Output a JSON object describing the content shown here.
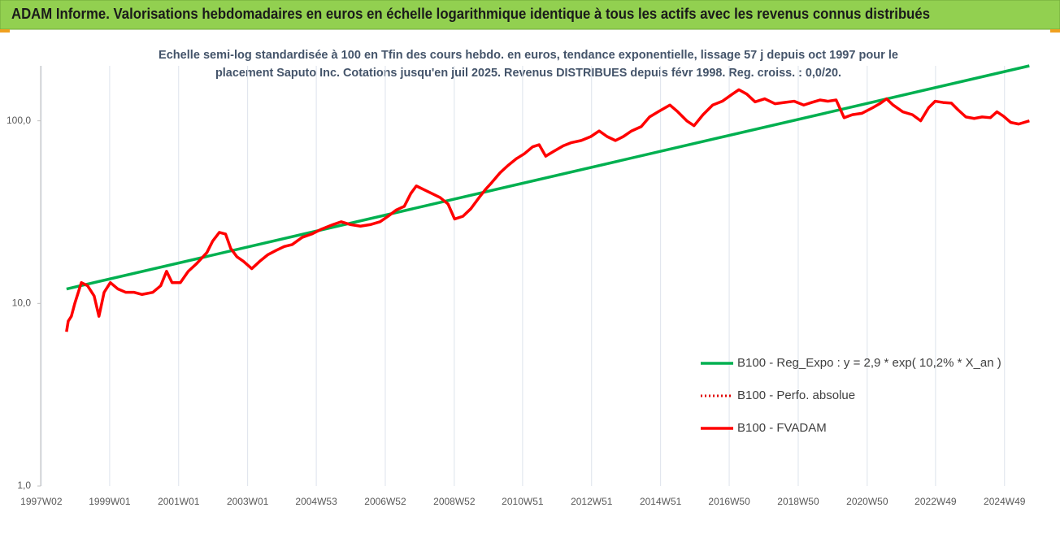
{
  "chart_data": {
    "type": "line",
    "title": "ADAM Informe. Valorisations hebdomadaires en euros en échelle logarithmique identique à tous les actifs avec les revenus connus distribués",
    "subtitle": [
      "Echelle semi-log standardisée à 100 en Tfin des cours hebdo. en euros, tendance exponentielle, lissage 57 j depuis oct 1997 pour le",
      "placement Saputo Inc. Cotations jusqu'en juil 2025.  Revenus DISTRIBUES depuis févr 1998. Reg. croiss. : 0,0/20."
    ],
    "log_scale": true,
    "grid": "x",
    "legend": "right",
    "xlim": [
      1997,
      2025.7
    ],
    "ylim": [
      1,
      200
    ],
    "xticks": [
      {
        "value": 1997.02,
        "label": "1997W02"
      },
      {
        "value": 1999.0,
        "label": "1999W01"
      },
      {
        "value": 2001.0,
        "label": "2001W01"
      },
      {
        "value": 2003.0,
        "label": "2003W01"
      },
      {
        "value": 2004.99,
        "label": "2004W53"
      },
      {
        "value": 2006.99,
        "label": "2006W52"
      },
      {
        "value": 2008.99,
        "label": "2008W52"
      },
      {
        "value": 2010.97,
        "label": "2010W51"
      },
      {
        "value": 2012.97,
        "label": "2012W51"
      },
      {
        "value": 2014.97,
        "label": "2014W51"
      },
      {
        "value": 2016.96,
        "label": "2016W50"
      },
      {
        "value": 2018.96,
        "label": "2018W50"
      },
      {
        "value": 2020.96,
        "label": "2020W50"
      },
      {
        "value": 2022.94,
        "label": "2022W49"
      },
      {
        "value": 2024.94,
        "label": "2024W49"
      }
    ],
    "yticks": [
      {
        "value": 1,
        "label": "1,0"
      },
      {
        "value": 10,
        "label": "10,0"
      },
      {
        "value": 100,
        "label": "100,0"
      }
    ],
    "series": [
      {
        "name": "B100 - Reg_Expo : y = 2,9 * exp( 10,2% *  X_an )",
        "color": "#00b050",
        "style": "solid",
        "x": [
          1997.75,
          2025.66
        ],
        "values": [
          12,
          200
        ]
      },
      {
        "name": "B100 - Perfo. absolue",
        "color": "#e00000",
        "style": "dotted",
        "x": [
          1997.75,
          1997.8,
          1997.89,
          1997.99,
          1998.18,
          1998.36,
          1998.55,
          1998.69,
          1998.84,
          1999.02,
          1999.24,
          1999.47,
          1999.71,
          1999.94,
          2000.25,
          2000.48,
          2000.65,
          2000.81,
          2001.05,
          2001.28,
          2001.52,
          2001.82,
          2001.99,
          2002.18,
          2002.36,
          2002.51,
          2002.69,
          2002.88,
          2003.12,
          2003.35,
          2003.59,
          2003.82,
          2004.06,
          2004.29,
          2004.58,
          2004.86,
          2005.14,
          2005.47,
          2005.71,
          2005.99,
          2006.27,
          2006.55,
          2006.84,
          2007.07,
          2007.31,
          2007.54,
          2007.73,
          2007.89,
          2008.11,
          2008.34,
          2008.58,
          2008.81,
          2009.0,
          2009.24,
          2009.47,
          2009.71,
          2009.89,
          2010.08,
          2010.32,
          2010.55,
          2010.79,
          2011.02,
          2011.26,
          2011.45,
          2011.64,
          2011.87,
          2012.15,
          2012.39,
          2012.67,
          2012.95,
          2013.19,
          2013.42,
          2013.66,
          2013.89,
          2014.13,
          2014.41,
          2014.65,
          2014.93,
          2015.24,
          2015.47,
          2015.73,
          2015.94,
          2016.2,
          2016.48,
          2016.76,
          2017.05,
          2017.24,
          2017.47,
          2017.71,
          2017.99,
          2018.29,
          2018.55,
          2018.84,
          2019.12,
          2019.35,
          2019.59,
          2019.82,
          2020.06,
          2020.29,
          2020.53,
          2020.81,
          2021.12,
          2021.35,
          2021.52,
          2021.71,
          2021.99,
          2022.27,
          2022.51,
          2022.74,
          2022.93,
          2023.16,
          2023.4,
          2023.59,
          2023.82,
          2024.06,
          2024.29,
          2024.53,
          2024.72,
          2024.91,
          2025.12,
          2025.35,
          2025.66
        ],
        "values": [
          7,
          8,
          8.5,
          10,
          13,
          12.5,
          11,
          8.5,
          11.5,
          13,
          12,
          11.5,
          11.5,
          11.2,
          11.5,
          12.5,
          15,
          13,
          13,
          15,
          16.5,
          19,
          22,
          24.5,
          24,
          20,
          18,
          17,
          15.5,
          17,
          18.5,
          19.5,
          20.5,
          21,
          23,
          24,
          25.5,
          27,
          28,
          27,
          26.5,
          27,
          28,
          30,
          32.5,
          34,
          40,
          44,
          42,
          40,
          38,
          35,
          29,
          30,
          33,
          38,
          42,
          46,
          52,
          57,
          62,
          66,
          72,
          74,
          64,
          68,
          73,
          76,
          78,
          82,
          88,
          82,
          78,
          82,
          88,
          93,
          105,
          113,
          122,
          112,
          100,
          94,
          108,
          122,
          128,
          140,
          148,
          140,
          127,
          132,
          124,
          126,
          128,
          122,
          126,
          130,
          128,
          130,
          104,
          108,
          110,
          118,
          125,
          132,
          122,
          112,
          108,
          100,
          118,
          128,
          126,
          125,
          115,
          105,
          103,
          105,
          104,
          112,
          106,
          98,
          96,
          100
        ]
      },
      {
        "name": "B100 - FVADAM",
        "color": "#ff0000",
        "style": "solid",
        "x": [
          1997.75,
          1997.8,
          1997.89,
          1997.99,
          1998.18,
          1998.36,
          1998.55,
          1998.69,
          1998.84,
          1999.02,
          1999.24,
          1999.47,
          1999.71,
          1999.94,
          2000.25,
          2000.48,
          2000.65,
          2000.81,
          2001.05,
          2001.28,
          2001.52,
          2001.82,
          2001.99,
          2002.18,
          2002.36,
          2002.51,
          2002.69,
          2002.88,
          2003.12,
          2003.35,
          2003.59,
          2003.82,
          2004.06,
          2004.29,
          2004.58,
          2004.86,
          2005.14,
          2005.47,
          2005.71,
          2005.99,
          2006.27,
          2006.55,
          2006.84,
          2007.07,
          2007.31,
          2007.54,
          2007.73,
          2007.89,
          2008.11,
          2008.34,
          2008.58,
          2008.81,
          2009.0,
          2009.24,
          2009.47,
          2009.71,
          2009.89,
          2010.08,
          2010.32,
          2010.55,
          2010.79,
          2011.02,
          2011.26,
          2011.45,
          2011.64,
          2011.87,
          2012.15,
          2012.39,
          2012.67,
          2012.95,
          2013.19,
          2013.42,
          2013.66,
          2013.89,
          2014.13,
          2014.41,
          2014.65,
          2014.93,
          2015.24,
          2015.47,
          2015.73,
          2015.94,
          2016.2,
          2016.48,
          2016.76,
          2017.05,
          2017.24,
          2017.47,
          2017.71,
          2017.99,
          2018.29,
          2018.55,
          2018.84,
          2019.12,
          2019.35,
          2019.59,
          2019.82,
          2020.06,
          2020.29,
          2020.53,
          2020.81,
          2021.12,
          2021.35,
          2021.52,
          2021.71,
          2021.99,
          2022.27,
          2022.51,
          2022.74,
          2022.93,
          2023.16,
          2023.4,
          2023.59,
          2023.82,
          2024.06,
          2024.29,
          2024.53,
          2024.72,
          2024.91,
          2025.12,
          2025.35,
          2025.66
        ],
        "values": [
          7,
          8,
          8.5,
          10,
          13,
          12.5,
          11,
          8.5,
          11.5,
          13,
          12,
          11.5,
          11.5,
          11.2,
          11.5,
          12.5,
          15,
          13,
          13,
          15,
          16.5,
          19,
          22,
          24.5,
          24,
          20,
          18,
          17,
          15.5,
          17,
          18.5,
          19.5,
          20.5,
          21,
          23,
          24,
          25.5,
          27,
          28,
          27,
          26.5,
          27,
          28,
          30,
          32.5,
          34,
          40,
          44,
          42,
          40,
          38,
          35,
          29,
          30,
          33,
          38,
          42,
          46,
          52,
          57,
          62,
          66,
          72,
          74,
          64,
          68,
          73,
          76,
          78,
          82,
          88,
          82,
          78,
          82,
          88,
          93,
          105,
          113,
          122,
          112,
          100,
          94,
          108,
          122,
          128,
          140,
          148,
          140,
          127,
          132,
          124,
          126,
          128,
          122,
          126,
          130,
          128,
          130,
          104,
          108,
          110,
          118,
          125,
          132,
          122,
          112,
          108,
          100,
          118,
          128,
          126,
          125,
          115,
          105,
          103,
          105,
          104,
          112,
          106,
          98,
          96,
          100
        ]
      }
    ]
  }
}
